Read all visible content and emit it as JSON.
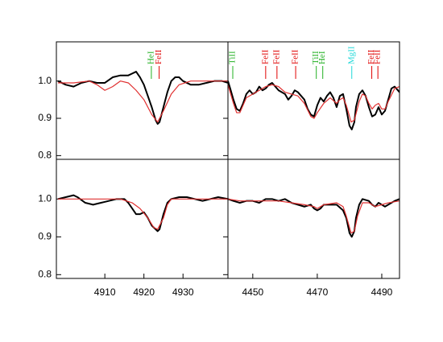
{
  "chart_data": [
    {
      "type": "line",
      "xlim": [
        4897.6,
        4941.5
      ],
      "ylim": [
        0.79,
        1.105
      ],
      "yticks": [
        0.8,
        0.9,
        {
          "value": 1,
          "label": "1.0"
        }
      ],
      "series": [
        {
          "color": "#000000",
          "x": [
            4898,
            4900,
            4902,
            4904,
            4906,
            4908,
            4910,
            4912,
            4914,
            4916,
            4917,
            4918,
            4919,
            4920,
            4921,
            4922,
            4923,
            4923.5,
            4924,
            4925,
            4926,
            4927,
            4928,
            4929,
            4930,
            4932,
            4934,
            4936,
            4938,
            4940,
            4941.5
          ],
          "values": [
            1.0,
            0.99,
            0.985,
            0.995,
            1.0,
            0.995,
            0.995,
            1.01,
            1.015,
            1.015,
            1.02,
            1.025,
            1.01,
            0.99,
            0.96,
            0.93,
            0.895,
            0.885,
            0.89,
            0.93,
            0.97,
            1.0,
            1.01,
            1.01,
            1.0,
            0.99,
            0.99,
            0.995,
            1.0,
            1.0,
            0.995
          ]
        },
        {
          "color": "#e03030",
          "x": [
            4898,
            4902,
            4906,
            4908,
            4910,
            4912,
            4914,
            4916,
            4918,
            4920,
            4922,
            4923.5,
            4925,
            4927,
            4929,
            4932,
            4936,
            4941.5
          ],
          "values": [
            0.995,
            0.995,
            1.0,
            0.99,
            0.975,
            0.985,
            1.0,
            0.995,
            0.975,
            0.95,
            0.91,
            0.89,
            0.92,
            0.965,
            0.99,
            1.0,
            1.0,
            1.0
          ]
        }
      ],
      "lines": [
        {
          "label": "HeI",
          "x": 4921.9,
          "color": "#22b022"
        },
        {
          "label": "FeII",
          "x": 4923.9,
          "color": "#e00000"
        }
      ]
    },
    {
      "type": "line",
      "xlim": [
        4442.3,
        4495.5
      ],
      "ylim": [
        0.79,
        1.105
      ],
      "series": [
        {
          "color": "#000000",
          "x": [
            4442.3,
            4443,
            4444,
            4445,
            4446,
            4447,
            4448,
            4449,
            4450,
            4451,
            4452,
            4453,
            4454,
            4455,
            4456,
            4457,
            4458,
            4460,
            4461,
            4462,
            4463,
            4464,
            4466,
            4467,
            4468,
            4469,
            4470,
            4471,
            4472,
            4473,
            4474,
            4475,
            4476,
            4477,
            4478,
            4479,
            4480,
            4480.7,
            4481.5,
            4482,
            4483,
            4484,
            4485,
            4486,
            4487,
            4488,
            4489,
            4490,
            4491,
            4492,
            4493,
            4494,
            4495.5
          ],
          "values": [
            1.0,
            0.98,
            0.95,
            0.925,
            0.92,
            0.94,
            0.965,
            0.975,
            0.965,
            0.97,
            0.985,
            0.975,
            0.98,
            0.99,
            0.995,
            0.985,
            0.975,
            0.965,
            0.95,
            0.96,
            0.975,
            0.97,
            0.95,
            0.925,
            0.91,
            0.905,
            0.935,
            0.955,
            0.945,
            0.96,
            0.97,
            0.955,
            0.93,
            0.96,
            0.965,
            0.925,
            0.88,
            0.87,
            0.89,
            0.93,
            0.965,
            0.975,
            0.96,
            0.93,
            0.905,
            0.91,
            0.93,
            0.91,
            0.92,
            0.95,
            0.98,
            0.985,
            0.97
          ]
        },
        {
          "color": "#e03030",
          "x": [
            4442.3,
            4444,
            4445,
            4446,
            4448,
            4450,
            4452,
            4454,
            4456,
            4458,
            4460,
            4462,
            4464,
            4466,
            4468,
            4469,
            4470,
            4472,
            4474,
            4476,
            4477,
            4478,
            4479,
            4480.5,
            4481.5,
            4483,
            4484,
            4485,
            4486,
            4487,
            4488,
            4489,
            4490,
            4491,
            4492,
            4494,
            4495.5
          ],
          "values": [
            0.99,
            0.94,
            0.915,
            0.915,
            0.955,
            0.965,
            0.975,
            0.985,
            0.99,
            0.985,
            0.97,
            0.965,
            0.96,
            0.94,
            0.905,
            0.9,
            0.915,
            0.94,
            0.955,
            0.94,
            0.95,
            0.955,
            0.935,
            0.89,
            0.895,
            0.945,
            0.965,
            0.96,
            0.94,
            0.925,
            0.935,
            0.94,
            0.925,
            0.925,
            0.945,
            0.98,
            0.985
          ]
        }
      ],
      "lines": [
        {
          "label": "TiII",
          "x": 4443.8,
          "color": "#22b022"
        },
        {
          "label": "FeII",
          "x": 4454.0,
          "color": "#e00000"
        },
        {
          "label": "FeII",
          "x": 4457.5,
          "color": "#e00000"
        },
        {
          "label": "FeII",
          "x": 4463.3,
          "color": "#e00000"
        },
        {
          "label": "TiII",
          "x": 4469.7,
          "color": "#22b022"
        },
        {
          "label": "HeI",
          "x": 4471.7,
          "color": "#22b022"
        },
        {
          "label": "MgII",
          "x": 4480.7,
          "color": "#20d8d8"
        },
        {
          "label": "FeII",
          "x": 4486.9,
          "color": "#e00000"
        },
        {
          "label": "FeII",
          "x": 4488.8,
          "color": "#e00000"
        }
      ]
    },
    {
      "type": "line",
      "xlim": [
        4897.6,
        4941.5
      ],
      "ylim": [
        0.79,
        1.105
      ],
      "yticks": [
        0.8,
        0.9,
        {
          "value": 1,
          "label": "1.0"
        }
      ],
      "xticks": [
        4910,
        4920,
        4930
      ],
      "series": [
        {
          "color": "#000000",
          "x": [
            4898,
            4900,
            4902,
            4903,
            4905,
            4907,
            4909,
            4911,
            4913,
            4915,
            4916,
            4917,
            4918,
            4919,
            4920,
            4921,
            4922,
            4923,
            4923.5,
            4924,
            4925,
            4926,
            4927,
            4929,
            4931,
            4933,
            4935,
            4937,
            4939,
            4941.5
          ],
          "values": [
            1.0,
            1.005,
            1.01,
            1.005,
            0.99,
            0.985,
            0.99,
            0.995,
            1.0,
            1.0,
            0.99,
            0.975,
            0.96,
            0.96,
            0.965,
            0.95,
            0.93,
            0.92,
            0.915,
            0.92,
            0.96,
            0.99,
            1.0,
            1.005,
            1.005,
            1.0,
            0.995,
            1.0,
            1.005,
            1.0
          ]
        },
        {
          "color": "#e03030",
          "x": [
            4898,
            4910,
            4914,
            4917,
            4919,
            4921,
            4922.5,
            4923.5,
            4925,
            4926,
            4927,
            4941.5
          ],
          "values": [
            1.0,
            1.0,
            1.0,
            0.99,
            0.975,
            0.95,
            0.925,
            0.92,
            0.95,
            0.985,
            1.0,
            1.0
          ]
        }
      ]
    },
    {
      "type": "line",
      "xlim": [
        4442.3,
        4495.5
      ],
      "ylim": [
        0.79,
        1.105
      ],
      "xticks": [
        4450,
        4470,
        4490
      ],
      "series": [
        {
          "color": "#000000",
          "x": [
            4442.3,
            4444,
            4446,
            4448,
            4450,
            4452,
            4454,
            4456,
            4458,
            4460,
            4462,
            4464,
            4466,
            4468,
            4469,
            4470,
            4471,
            4472,
            4474,
            4476,
            4478,
            4479,
            4480,
            4480.7,
            4481.5,
            4482,
            4483,
            4484,
            4486,
            4487,
            4488,
            4489,
            4490,
            4491,
            4492,
            4494,
            4495.5
          ],
          "values": [
            1.0,
            0.995,
            0.99,
            0.995,
            0.995,
            0.99,
            1.0,
            1.0,
            0.995,
            1.0,
            0.99,
            0.985,
            0.98,
            0.985,
            0.975,
            0.97,
            0.975,
            0.985,
            0.985,
            0.985,
            0.97,
            0.95,
            0.91,
            0.9,
            0.915,
            0.95,
            0.985,
            1.0,
            0.995,
            0.985,
            0.98,
            0.99,
            0.985,
            0.98,
            0.985,
            0.995,
            1.0
          ]
        },
        {
          "color": "#e03030",
          "x": [
            4442.3,
            4446,
            4450,
            4454,
            4458,
            4462,
            4466,
            4469,
            4470,
            4472,
            4476,
            4478,
            4479,
            4480.5,
            4481.5,
            4482.5,
            4484,
            4486,
            4488,
            4490,
            4492,
            4495.5
          ],
          "values": [
            1.0,
            0.995,
            0.995,
            0.995,
            0.995,
            0.99,
            0.985,
            0.98,
            0.975,
            0.985,
            0.99,
            0.98,
            0.955,
            0.91,
            0.915,
            0.955,
            0.99,
            0.99,
            0.98,
            0.985,
            0.99,
            0.995
          ]
        }
      ]
    }
  ]
}
